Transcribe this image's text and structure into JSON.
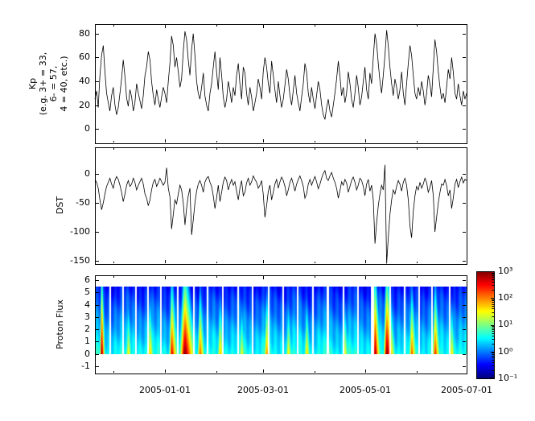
{
  "figure": {
    "background": "#ffffff",
    "line_color": "#000000"
  },
  "chart_data": [
    {
      "type": "line",
      "name": "kp",
      "ylabel": "Kp\n(e.g. 3+ = 33,\n6- = 57,\n4 = 40, etc.)",
      "ylim": [
        -12,
        88
      ],
      "line_color": "#000000",
      "yticks": [
        {
          "value": 80,
          "label": "80"
        },
        {
          "value": 60,
          "label": "60"
        },
        {
          "value": 40,
          "label": "40"
        },
        {
          "value": 20,
          "label": "20"
        },
        {
          "value": 0,
          "label": "0"
        }
      ],
      "x_unit": "day_index_from_left_edge",
      "values": [
        25,
        32,
        18,
        45,
        62,
        70,
        48,
        30,
        22,
        15,
        28,
        35,
        20,
        12,
        18,
        30,
        42,
        58,
        44,
        26,
        19,
        33,
        27,
        15,
        22,
        38,
        30,
        24,
        17,
        28,
        45,
        52,
        65,
        58,
        40,
        28,
        20,
        33,
        25,
        18,
        27,
        35,
        30,
        22,
        40,
        55,
        78,
        70,
        52,
        60,
        48,
        35,
        42,
        65,
        82,
        75,
        58,
        45,
        67,
        80,
        62,
        40,
        30,
        25,
        35,
        47,
        28,
        20,
        15,
        30,
        38,
        52,
        65,
        48,
        33,
        60,
        45,
        27,
        18,
        25,
        40,
        32,
        22,
        35,
        28,
        45,
        55,
        38,
        25,
        52,
        47,
        30,
        20,
        35,
        27,
        15,
        22,
        30,
        42,
        35,
        25,
        48,
        60,
        52,
        38,
        30,
        57,
        45,
        33,
        22,
        40,
        28,
        18,
        25,
        37,
        50,
        42,
        28,
        20,
        32,
        45,
        30,
        22,
        15,
        27,
        38,
        55,
        48,
        30,
        22,
        35,
        25,
        17,
        28,
        40,
        33,
        20,
        12,
        8,
        18,
        25,
        15,
        10,
        20,
        30,
        42,
        57,
        45,
        28,
        35,
        22,
        30,
        48,
        38,
        25,
        18,
        30,
        45,
        35,
        20,
        27,
        40,
        52,
        33,
        25,
        47,
        38,
        60,
        80,
        72,
        55,
        40,
        30,
        45,
        62,
        83,
        70,
        52,
        38,
        28,
        42,
        35,
        25,
        33,
        48,
        30,
        20,
        38,
        55,
        70,
        62,
        45,
        30,
        25,
        35,
        28,
        40,
        32,
        20,
        30,
        45,
        38,
        27,
        52,
        75,
        65,
        48,
        35,
        25,
        30,
        22,
        35,
        50,
        42,
        60,
        48,
        30,
        25,
        38,
        28,
        20,
        32,
        25,
        30
      ]
    },
    {
      "type": "line",
      "name": "dst",
      "ylabel": "DST",
      "ylim": [
        -155,
        45
      ],
      "line_color": "#000000",
      "yticks": [
        {
          "value": 0,
          "label": "0"
        },
        {
          "value": -50,
          "label": "-50"
        },
        {
          "value": -100,
          "label": "-100"
        },
        {
          "value": -150,
          "label": "-150"
        }
      ],
      "x_unit": "day_index_from_left_edge",
      "values": [
        -10,
        -15,
        -25,
        -45,
        -62,
        -50,
        -35,
        -22,
        -15,
        -8,
        -18,
        -25,
        -12,
        -5,
        -10,
        -20,
        -32,
        -48,
        -35,
        -20,
        -12,
        -22,
        -18,
        -8,
        -15,
        -28,
        -20,
        -14,
        -8,
        -18,
        -35,
        -42,
        -55,
        -45,
        -28,
        -15,
        -10,
        -22,
        -16,
        -8,
        -14,
        -20,
        -15,
        10,
        -25,
        -40,
        -95,
        -70,
        -45,
        -52,
        -35,
        -20,
        -28,
        -50,
        -88,
        -60,
        -38,
        -25,
        -105,
        -80,
        -50,
        -30,
        -18,
        -12,
        -20,
        -32,
        -15,
        -8,
        -5,
        -15,
        -22,
        -38,
        -60,
        -42,
        -20,
        -48,
        -32,
        -15,
        -6,
        -12,
        -28,
        -18,
        -10,
        -20,
        -14,
        -30,
        -45,
        -25,
        -12,
        -38,
        -32,
        -16,
        -8,
        -20,
        -14,
        -4,
        -10,
        -15,
        -25,
        -20,
        -12,
        -35,
        -75,
        -55,
        -30,
        -20,
        -45,
        -32,
        -18,
        -10,
        -25,
        -14,
        -6,
        -12,
        -22,
        -38,
        -28,
        -15,
        -8,
        -18,
        -30,
        -18,
        -10,
        -4,
        -12,
        -22,
        -42,
        -35,
        -18,
        -10,
        -20,
        -12,
        -5,
        -14,
        -26,
        -18,
        -8,
        0,
        5,
        -8,
        -12,
        -4,
        2,
        -8,
        -15,
        -25,
        -42,
        -30,
        -14,
        -20,
        -10,
        -16,
        -32,
        -22,
        -12,
        -6,
        -15,
        -28,
        -20,
        -8,
        -12,
        -22,
        -38,
        -18,
        -10,
        -30,
        -20,
        -45,
        -120,
        -85,
        -55,
        -35,
        -20,
        -28,
        15,
        -155,
        -110,
        -70,
        -45,
        -28,
        -35,
        -22,
        -12,
        -18,
        -30,
        -15,
        -8,
        -20,
        -45,
        -90,
        -110,
        -65,
        -38,
        -22,
        -28,
        -15,
        -25,
        -18,
        -8,
        -15,
        -32,
        -24,
        -12,
        -38,
        -100,
        -75,
        -50,
        -32,
        -18,
        -20,
        -10,
        -20,
        -38,
        -28,
        -60,
        -42,
        -18,
        -10,
        -24,
        -14,
        -6,
        -16,
        -10,
        -12
      ]
    },
    {
      "type": "heatmap",
      "name": "proton_flux",
      "ylabel": "Proton Flux",
      "ylim": [
        -1.6,
        6.4
      ],
      "y_data_range": [
        0,
        5.5
      ],
      "colormap": "jet",
      "scale": "log10",
      "yticks": [
        {
          "value": 6,
          "label": "6"
        },
        {
          "value": 5,
          "label": "5"
        },
        {
          "value": 4,
          "label": "4"
        },
        {
          "value": 3,
          "label": "3"
        },
        {
          "value": 2,
          "label": "2"
        },
        {
          "value": 1,
          "label": "1"
        },
        {
          "value": 0,
          "label": "0"
        },
        {
          "value": -1,
          "label": "-1"
        }
      ],
      "x_range": {
        "start_day": 0,
        "end_day": 223
      },
      "xticks": [
        {
          "day": 42,
          "label": "2005-01-01"
        },
        {
          "day": 101,
          "label": "2005-03-01"
        },
        {
          "day": 162,
          "label": "2005-05-01"
        },
        {
          "day": 223,
          "label": "2005-07-01"
        }
      ],
      "x_minor_tick_days": [
        11,
        73,
        132,
        193
      ],
      "background": {
        "v_at_y0": 0.55,
        "slope_per_y": 0.18
      },
      "energy_slope": 0.4,
      "events": [
        {
          "day": 4,
          "peak": 3.0,
          "rise": 0.8,
          "decay": 3
        },
        {
          "day": 20,
          "peak": 1.6,
          "rise": 1.0,
          "decay": 4
        },
        {
          "day": 33,
          "peak": 1.8,
          "rise": 1.0,
          "decay": 4
        },
        {
          "day": 46,
          "peak": 2.6,
          "rise": 1.0,
          "decay": 6
        },
        {
          "day": 54,
          "peak": 3.0,
          "rise": 2.0,
          "decay": 10
        },
        {
          "day": 63,
          "peak": 2.2,
          "rise": 1.0,
          "decay": 5
        },
        {
          "day": 75,
          "peak": 1.8,
          "rise": 1.0,
          "decay": 5
        },
        {
          "day": 88,
          "peak": 1.5,
          "rise": 1.0,
          "decay": 4
        },
        {
          "day": 103,
          "peak": 2.0,
          "rise": 1.0,
          "decay": 5
        },
        {
          "day": 116,
          "peak": 1.6,
          "rise": 1.0,
          "decay": 4
        },
        {
          "day": 127,
          "peak": 1.7,
          "rise": 1.0,
          "decay": 4
        },
        {
          "day": 140,
          "peak": 1.2,
          "rise": 1.0,
          "decay": 3
        },
        {
          "day": 150,
          "peak": 1.5,
          "rise": 1.0,
          "decay": 4
        },
        {
          "day": 168,
          "peak": 2.9,
          "rise": 1.0,
          "decay": 5
        },
        {
          "day": 175,
          "peak": 3.0,
          "rise": 1.2,
          "decay": 8
        },
        {
          "day": 190,
          "peak": 2.2,
          "rise": 1.0,
          "decay": 5
        },
        {
          "day": 204,
          "peak": 2.4,
          "rise": 1.0,
          "decay": 5
        },
        {
          "day": 214,
          "peak": 1.6,
          "rise": 1.0,
          "decay": 4
        }
      ],
      "gaps": [
        [
          8.5,
          9.6
        ],
        [
          16,
          17
        ],
        [
          24,
          25
        ],
        [
          31,
          32
        ],
        [
          39,
          40
        ],
        [
          49,
          50
        ],
        [
          58.5,
          59.5
        ],
        [
          67,
          68
        ],
        [
          76,
          77
        ],
        [
          85,
          86
        ],
        [
          94,
          95
        ],
        [
          103.5,
          104.5
        ],
        [
          112,
          113
        ],
        [
          121,
          122
        ],
        [
          130,
          131
        ],
        [
          139,
          140
        ],
        [
          148.5,
          149.5
        ],
        [
          157,
          158
        ],
        [
          165.5,
          167.3
        ],
        [
          176.5,
          177.5
        ],
        [
          185,
          186
        ],
        [
          194,
          195
        ],
        [
          201.5,
          202.5
        ],
        [
          212,
          213
        ]
      ],
      "colorbar": {
        "value_range": [
          -1,
          3
        ],
        "ticks": [
          {
            "value": 3,
            "label": "10³"
          },
          {
            "value": 2,
            "label": "10²"
          },
          {
            "value": 1,
            "label": "10¹"
          },
          {
            "value": 0,
            "label": "10⁰"
          },
          {
            "value": -1,
            "label": "10⁻¹"
          }
        ]
      }
    }
  ]
}
